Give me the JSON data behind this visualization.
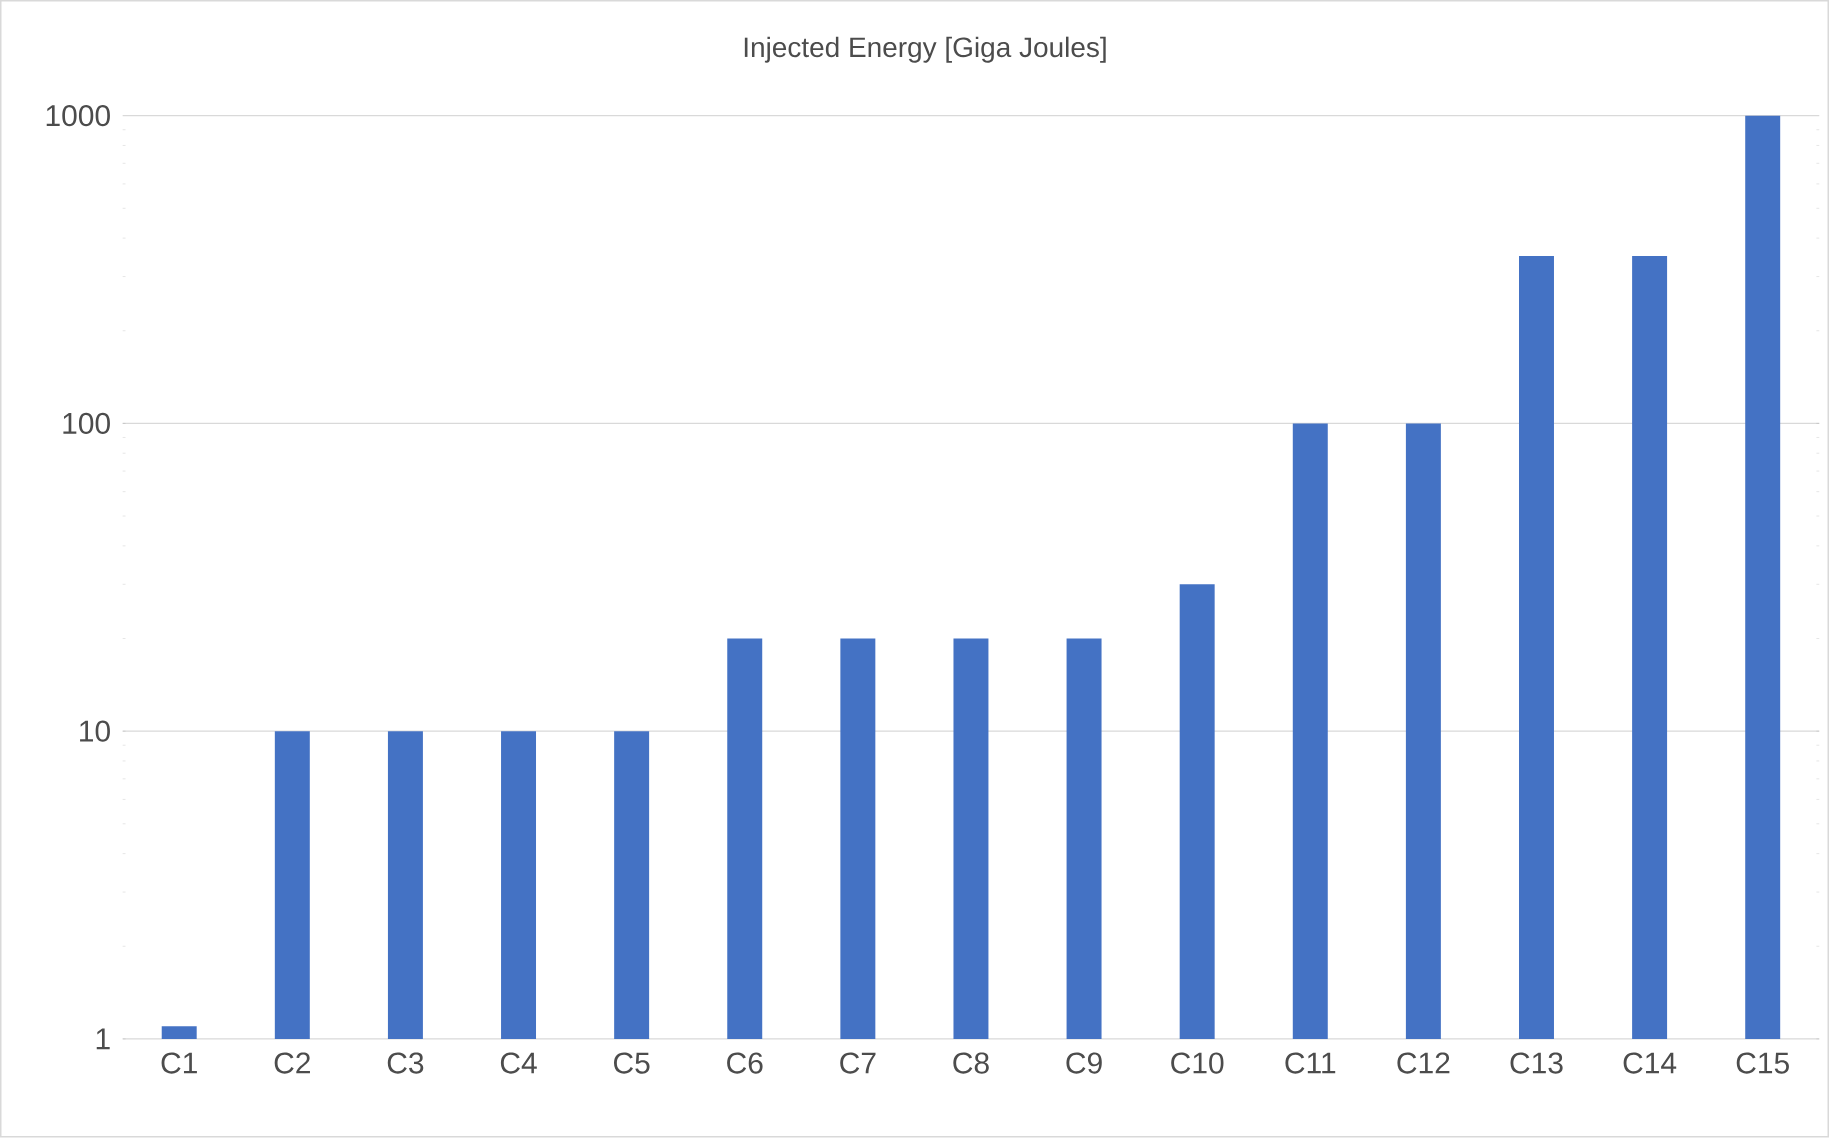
{
  "chart_data": {
    "type": "bar",
    "title": "Injected Energy [Giga Joules]",
    "categories": [
      "C1",
      "C2",
      "C3",
      "C4",
      "C5",
      "C6",
      "C7",
      "C8",
      "C9",
      "C10",
      "C11",
      "C12",
      "C13",
      "C14",
      "C15"
    ],
    "values": [
      1.1,
      10,
      10,
      10,
      10,
      20,
      20,
      20,
      20,
      30,
      100,
      100,
      350,
      350,
      1000
    ],
    "color": "#4472c4",
    "log": true,
    "ylim": [
      1,
      1000
    ],
    "yticks": [
      1,
      10,
      100,
      1000
    ],
    "grid": "y"
  }
}
